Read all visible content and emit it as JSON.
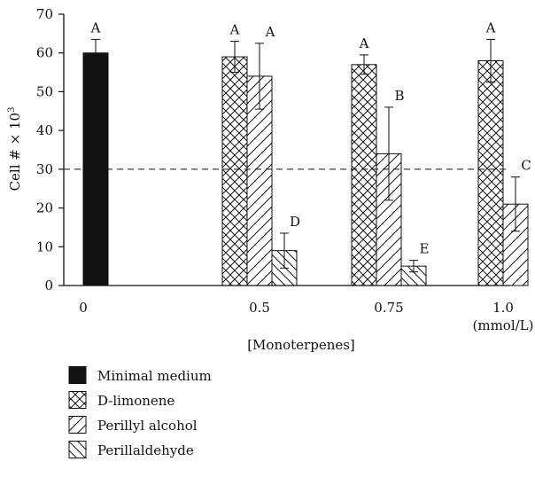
{
  "chart_data": {
    "type": "bar",
    "ylabel": "Cell # × 10",
    "ylabel_superscript": "3",
    "xlabel": "[Monoterpenes]",
    "ylim": [
      0,
      70
    ],
    "yticks": [
      0,
      10,
      20,
      30,
      40,
      50,
      60,
      70
    ],
    "reference_line": 30,
    "legend_position": "bottom-left",
    "groups": [
      {
        "label": "0",
        "sublabel": "",
        "bars": [
          {
            "series": "Minimal medium",
            "value": 60,
            "err": 3.5,
            "letter": "A"
          }
        ]
      },
      {
        "label": "0.5",
        "sublabel": "",
        "bars": [
          {
            "series": "D-limonene",
            "value": 59,
            "err": 4,
            "letter": "A"
          },
          {
            "series": "Perillyl alcohol",
            "value": 54,
            "err": 8.5,
            "letter": "A"
          },
          {
            "series": "Perillaldehyde",
            "value": 9,
            "err": 4.5,
            "letter": "D"
          }
        ]
      },
      {
        "label": "0.75",
        "sublabel": "",
        "bars": [
          {
            "series": "D-limonene",
            "value": 57,
            "err": 2.5,
            "letter": "A"
          },
          {
            "series": "Perillyl alcohol",
            "value": 34,
            "err": 12,
            "letter": "B"
          },
          {
            "series": "Perillaldehyde",
            "value": 5,
            "err": 1.5,
            "letter": "E"
          }
        ]
      },
      {
        "label": "1.0",
        "sublabel": "(mmol/L)",
        "bars": [
          {
            "series": "D-limonene",
            "value": 58,
            "err": 5.5,
            "letter": "A"
          },
          {
            "series": "Perillyl alcohol",
            "value": 21,
            "err": 7,
            "letter": "C"
          }
        ]
      }
    ],
    "series": [
      {
        "name": "Minimal medium",
        "pattern": "solid",
        "color": "#111111"
      },
      {
        "name": "D-limonene",
        "pattern": "crosshatch",
        "color": "#111111"
      },
      {
        "name": "Perillyl alcohol",
        "pattern": "diag-up",
        "color": "#111111"
      },
      {
        "name": "Perillaldehyde",
        "pattern": "diag-down",
        "color": "#111111"
      }
    ]
  }
}
